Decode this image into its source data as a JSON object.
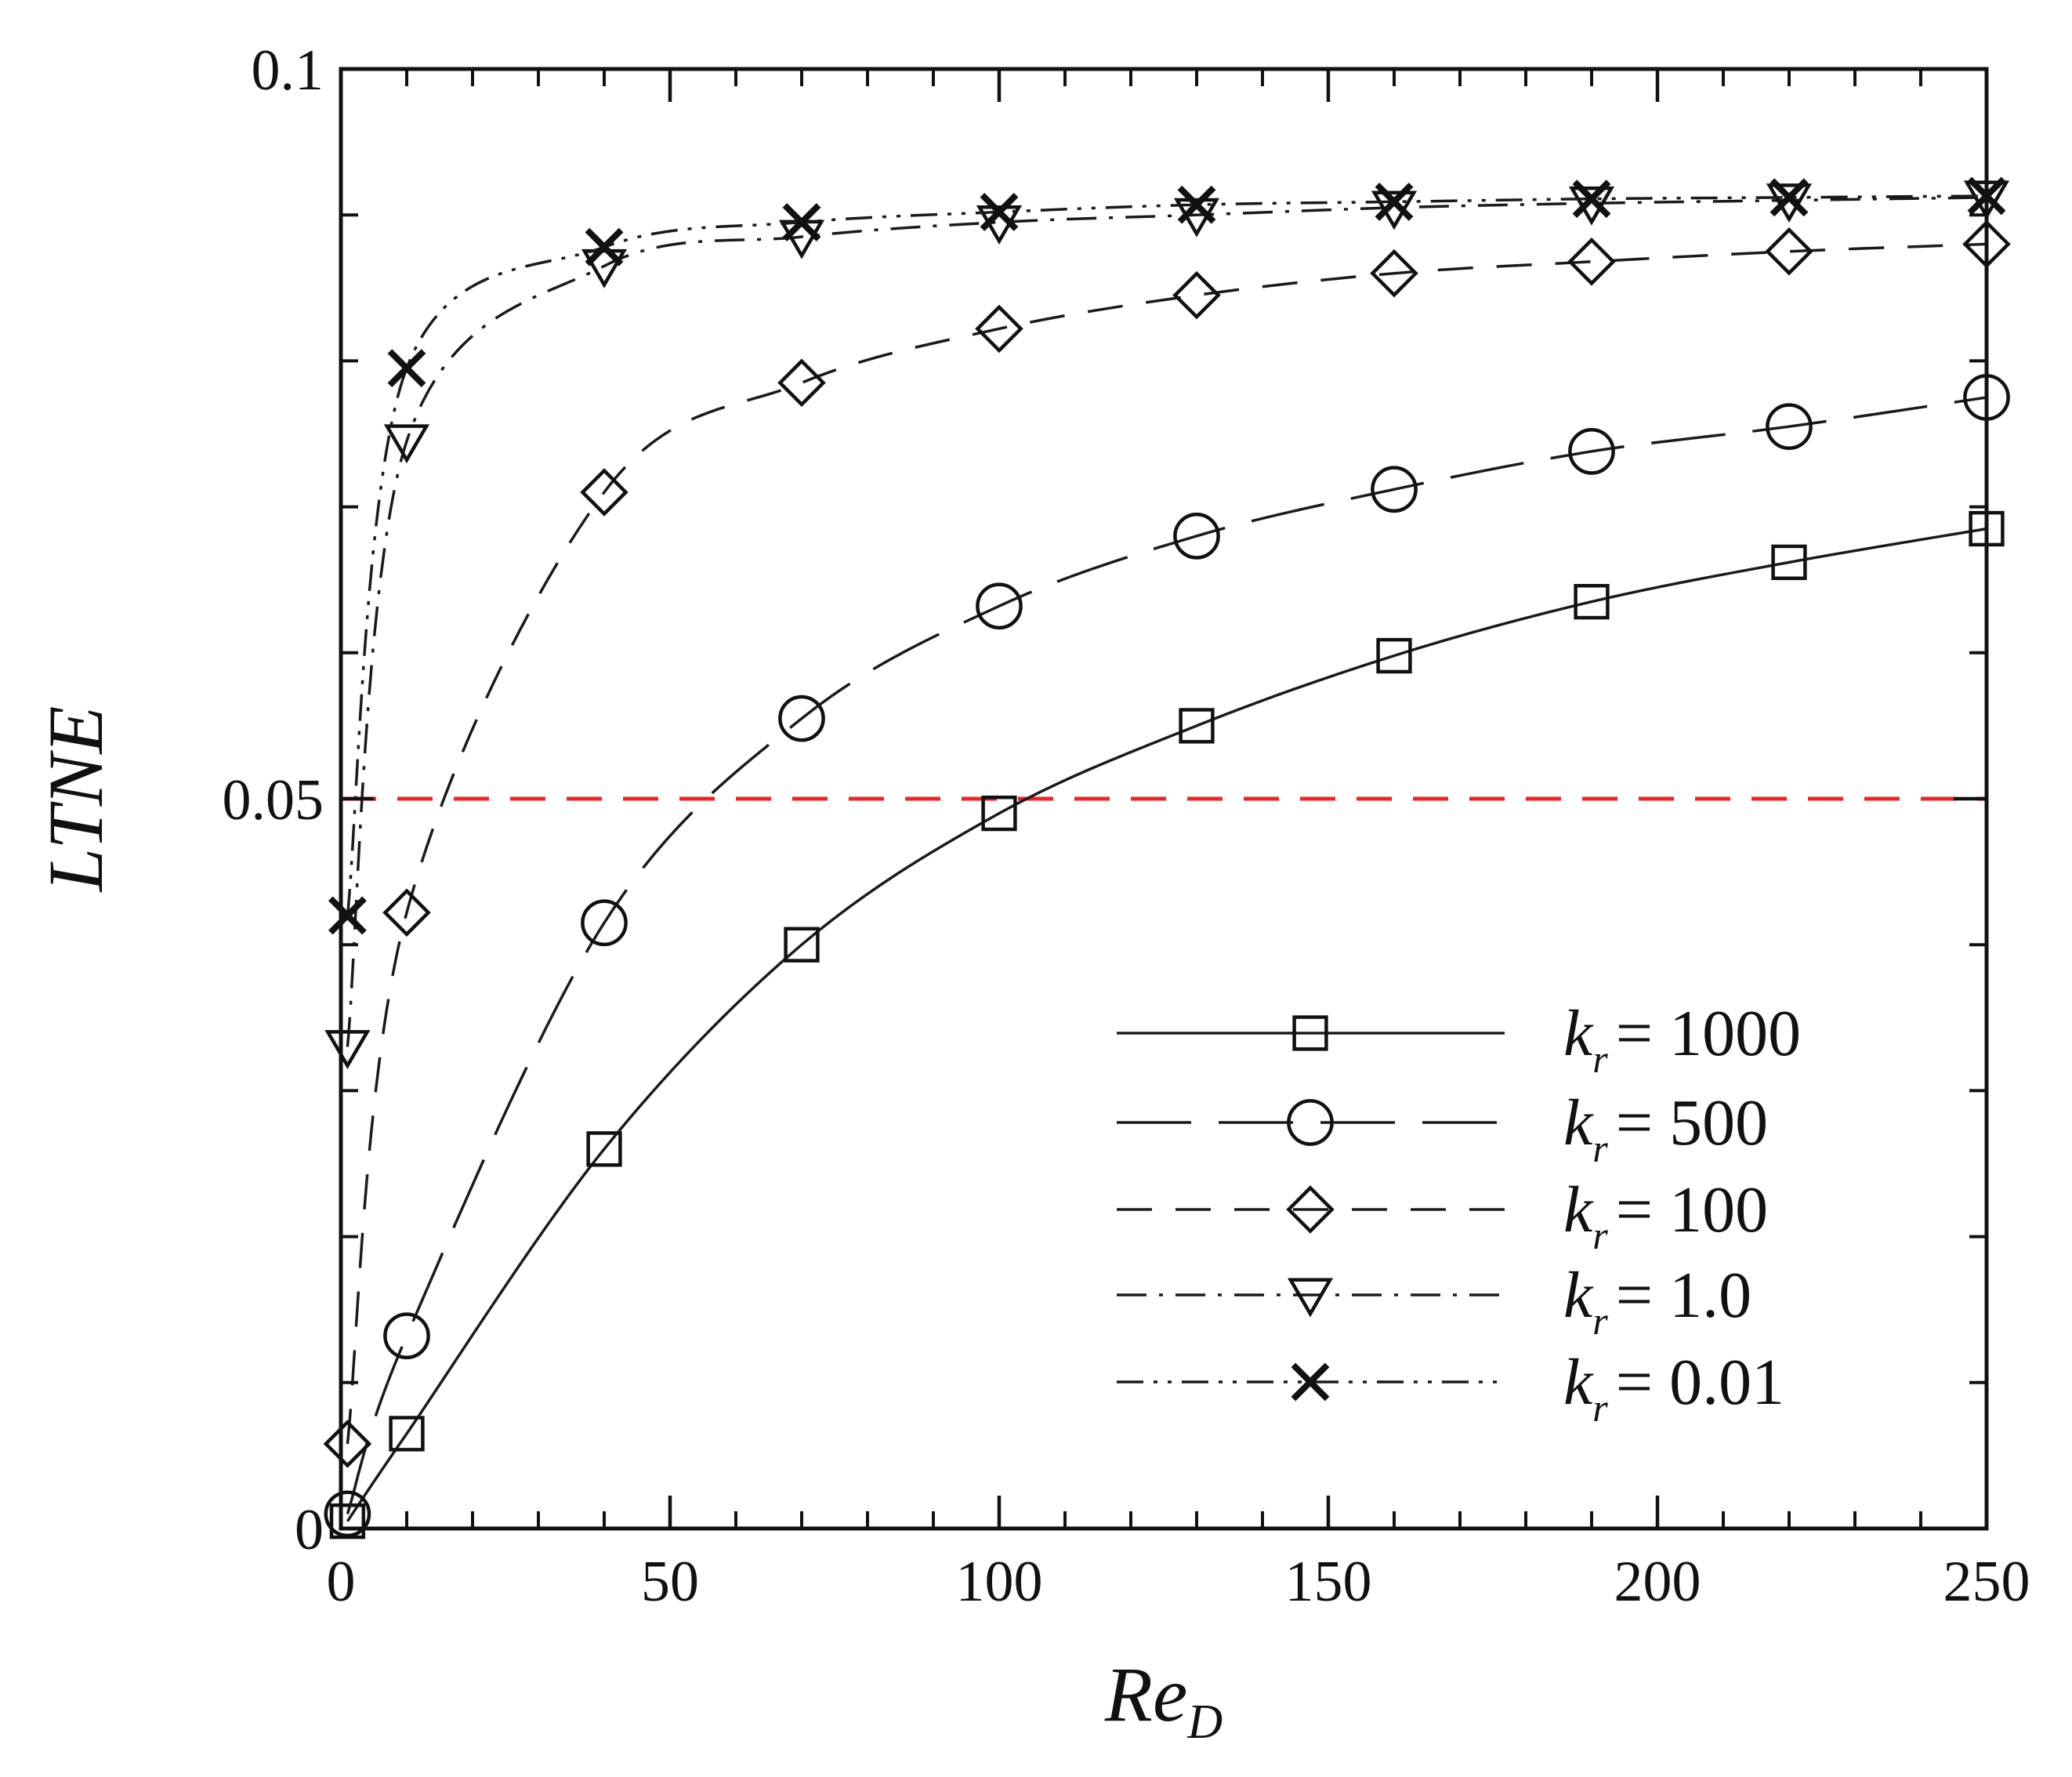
{
  "chart_data": {
    "type": "line",
    "title": "",
    "xlabel": {
      "main": "Re",
      "sub": "D"
    },
    "ylabel": "LTNE",
    "xlim": [
      0,
      250
    ],
    "ylim": [
      0,
      0.1
    ],
    "x_ticks": [
      0,
      50,
      100,
      150,
      200,
      250
    ],
    "x_tick_labels": [
      "0",
      "50",
      "100",
      "150",
      "200",
      "250"
    ],
    "y_ticks": [
      0,
      0.05,
      0.1
    ],
    "y_tick_labels": [
      "0",
      "0.05",
      "0.1"
    ],
    "x_minor_step": 10,
    "y_minor_step": 0.01,
    "grid": false,
    "legend_position": "lower-right",
    "reference_line": {
      "y": 0.05,
      "color": "#e8272b",
      "style": "dashed"
    },
    "series": [
      {
        "name": "k_r = 1000",
        "legend_var": "k",
        "legend_sub": "r",
        "legend_value": "= 1000",
        "marker": "square",
        "line_style": "solid",
        "x": [
          1,
          10,
          40,
          70,
          100,
          130,
          160,
          190,
          220,
          250
        ],
        "values": [
          0.0005,
          0.0065,
          0.026,
          0.04,
          0.049,
          0.055,
          0.0598,
          0.0635,
          0.0662,
          0.0685
        ]
      },
      {
        "name": "k_r = 500",
        "legend_var": "k",
        "legend_sub": "r",
        "legend_value": "= 500",
        "marker": "circle",
        "line_style": "longdash",
        "x": [
          1,
          10,
          40,
          70,
          100,
          130,
          160,
          190,
          220,
          250
        ],
        "values": [
          0.001,
          0.0132,
          0.0415,
          0.0555,
          0.0632,
          0.068,
          0.0712,
          0.0738,
          0.0755,
          0.0775
        ]
      },
      {
        "name": "k_r = 100",
        "legend_var": "k",
        "legend_sub": "r",
        "legend_value": "= 100",
        "marker": "diamond",
        "line_style": "dashed",
        "x": [
          1,
          10,
          40,
          70,
          100,
          130,
          160,
          190,
          220,
          250
        ],
        "values": [
          0.0058,
          0.0422,
          0.071,
          0.0785,
          0.0822,
          0.0845,
          0.086,
          0.0868,
          0.0875,
          0.088
        ]
      },
      {
        "name": "k_r = 1.0",
        "legend_var": "k",
        "legend_sub": "r",
        "legend_value": "= 1.0",
        "marker": "triangle-down",
        "line_style": "dashdot",
        "x": [
          1,
          10,
          40,
          70,
          100,
          130,
          160,
          190,
          220,
          250
        ],
        "values": [
          0.033,
          0.0745,
          0.0865,
          0.0885,
          0.0895,
          0.09,
          0.0905,
          0.0908,
          0.091,
          0.0912
        ]
      },
      {
        "name": "k_r = 0.01",
        "legend_var": "k",
        "legend_sub": "r",
        "legend_value": "= 0.01",
        "marker": "x",
        "line_style": "dashdotdot",
        "x": [
          1,
          10,
          40,
          70,
          100,
          130,
          160,
          190,
          220,
          250
        ],
        "values": [
          0.042,
          0.0795,
          0.0878,
          0.0895,
          0.0902,
          0.0907,
          0.0909,
          0.0911,
          0.0912,
          0.0913
        ]
      }
    ]
  }
}
